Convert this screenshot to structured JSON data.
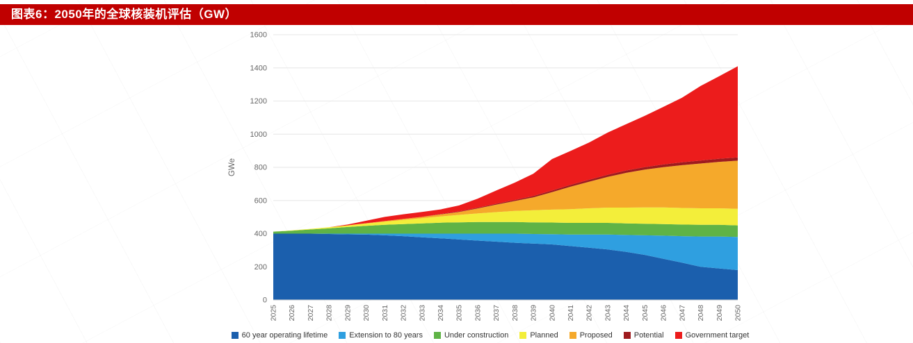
{
  "header": {
    "title": "图表6：2050年的全球核装机评估（GW）",
    "bar_color": "#c00000",
    "title_color": "#ffffff"
  },
  "chart_data": {
    "type": "area",
    "stacked": true,
    "title": "",
    "xlabel": "",
    "ylabel": "GWe",
    "ylim": [
      0,
      1600
    ],
    "ytick_step": 200,
    "grid": true,
    "legend_position": "bottom",
    "axis_text_color": "#666666",
    "gridline_color": "#e6e6e6",
    "x": [
      2025,
      2026,
      2027,
      2028,
      2029,
      2030,
      2031,
      2032,
      2033,
      2034,
      2035,
      2036,
      2037,
      2038,
      2039,
      2040,
      2041,
      2042,
      2043,
      2044,
      2045,
      2046,
      2047,
      2048,
      2049,
      2050
    ],
    "series": [
      {
        "name": "60 year operating lifetime",
        "color": "#1b5fad",
        "values": [
          400,
          400,
          400,
          398,
          396,
          394,
          390,
          385,
          378,
          372,
          365,
          358,
          352,
          345,
          340,
          335,
          325,
          315,
          305,
          290,
          272,
          248,
          225,
          200,
          190,
          180
        ]
      },
      {
        "name": "Extension to 80 years",
        "color": "#2f9fe0",
        "values": [
          0,
          0,
          0,
          2,
          4,
          6,
          10,
          15,
          22,
          28,
          35,
          42,
          48,
          55,
          58,
          62,
          70,
          80,
          90,
          102,
          118,
          140,
          160,
          183,
          193,
          200
        ]
      },
      {
        "name": "Under construction",
        "color": "#5fb346",
        "values": [
          12,
          18,
          25,
          32,
          40,
          47,
          53,
          58,
          62,
          66,
          68,
          70,
          70,
          70,
          70,
          70,
          70,
          70,
          70,
          70,
          70,
          70,
          70,
          70,
          70,
          70
        ]
      },
      {
        "name": "Planned",
        "color": "#f3ee3a",
        "values": [
          0,
          2,
          4,
          7,
          10,
          14,
          19,
          25,
          31,
          38,
          45,
          52,
          60,
          67,
          73,
          78,
          83,
          88,
          92,
          95,
          98,
          100,
          100,
          100,
          100,
          100
        ]
      },
      {
        "name": "Proposed",
        "color": "#f5a92b",
        "values": [
          0,
          0,
          0,
          0,
          0,
          2,
          4,
          6,
          8,
          12,
          18,
          30,
          45,
          60,
          78,
          105,
          135,
          160,
          185,
          210,
          228,
          243,
          258,
          270,
          280,
          290
        ]
      },
      {
        "name": "Potential",
        "color": "#9e1b1e",
        "values": [
          0,
          0,
          0,
          0,
          0,
          0,
          0,
          0,
          0,
          2,
          3,
          4,
          5,
          6,
          8,
          10,
          11,
          12,
          13,
          14,
          15,
          16,
          17,
          18,
          19,
          20
        ]
      },
      {
        "name": "Government target",
        "color": "#ec1c1c",
        "values": [
          0,
          0,
          0,
          0,
          5,
          15,
          25,
          28,
          30,
          28,
          36,
          55,
          80,
          105,
          135,
          190,
          205,
          225,
          255,
          280,
          310,
          348,
          390,
          450,
          498,
          550
        ]
      }
    ]
  }
}
